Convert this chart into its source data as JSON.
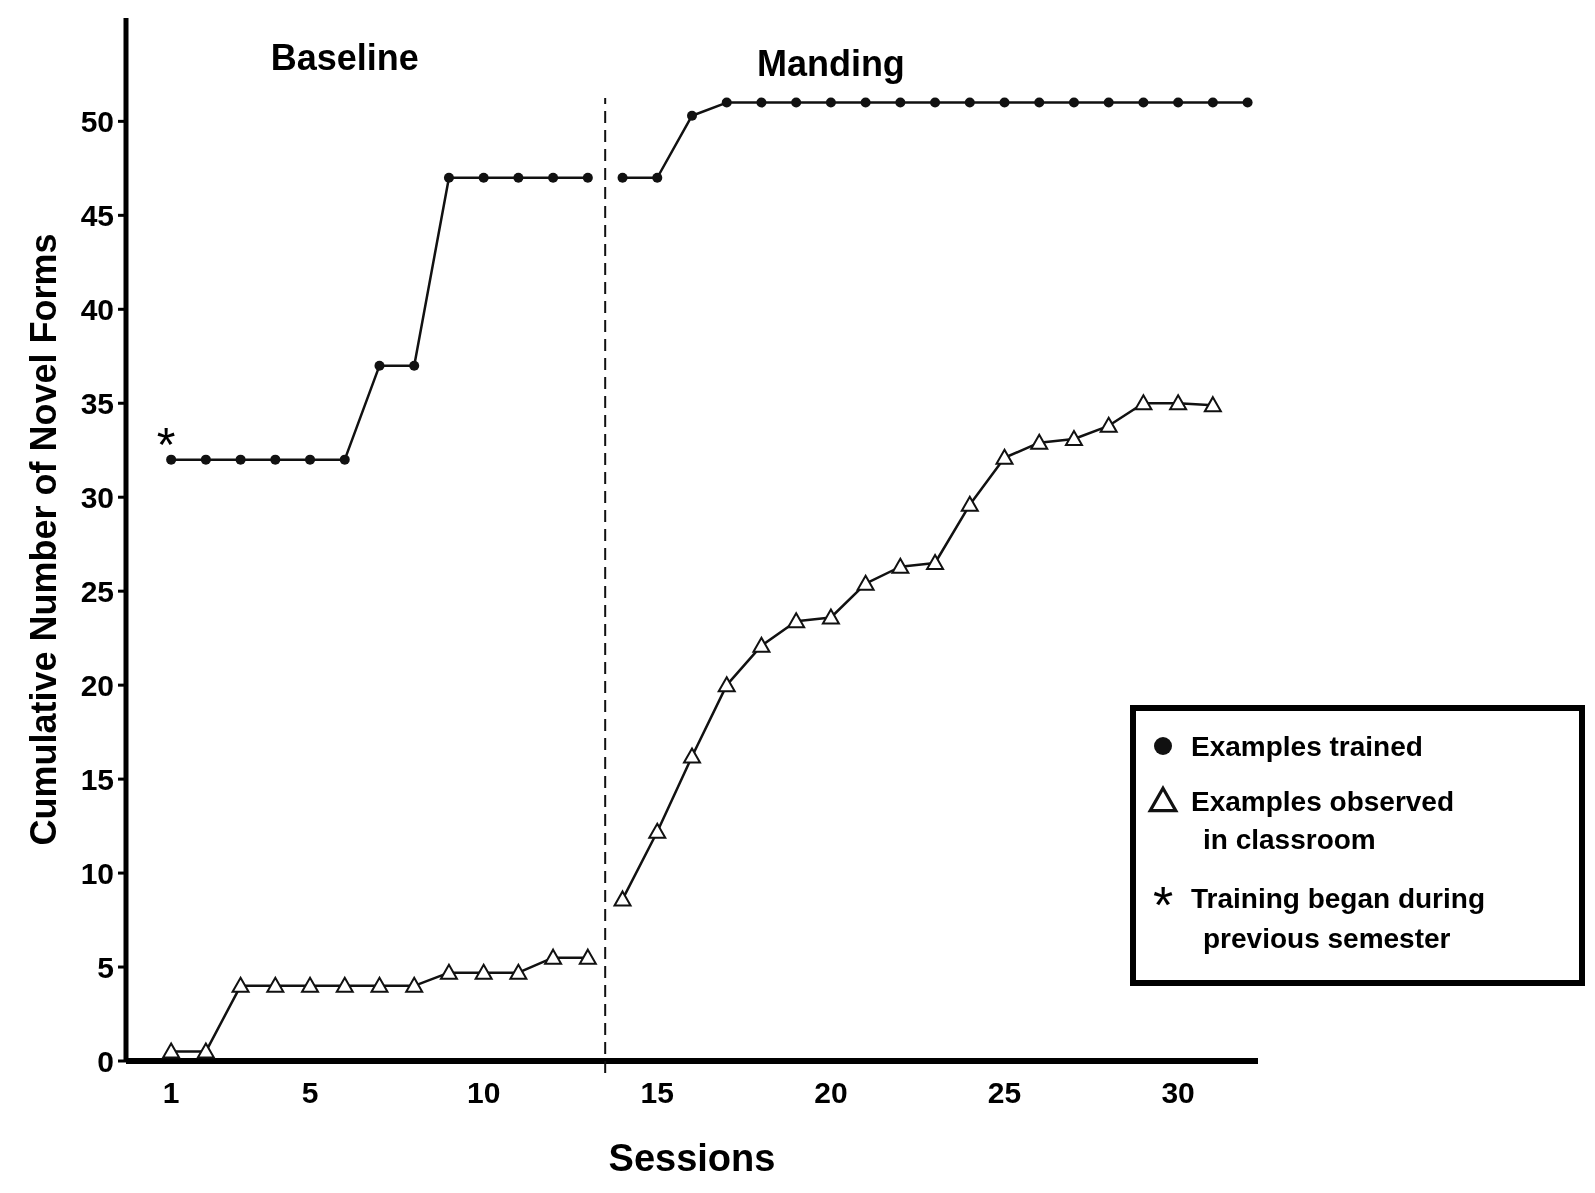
{
  "chart_data": {
    "type": "line",
    "xlabel": "Sessions",
    "ylabel": "Cumulative Number of Novel Forms",
    "xlim": [
      -0.3,
      32.3
    ],
    "ylim": [
      0,
      55.5
    ],
    "xticks": [
      1,
      5,
      10,
      15,
      20,
      25,
      30
    ],
    "yticks": [
      0,
      5,
      10,
      15,
      20,
      25,
      30,
      35,
      40,
      45,
      50
    ],
    "grid": false,
    "legend": "bottom right",
    "line_style": "solid",
    "series": [
      {
        "name": "Examples trained",
        "color": "#111111",
        "marker": "circle",
        "x": [
          1,
          2,
          3,
          4,
          5,
          6,
          7,
          8,
          9,
          10,
          11,
          12,
          13,
          13.5,
          14,
          15,
          16,
          17,
          18,
          19,
          20,
          21,
          22,
          23,
          24,
          25,
          26,
          27,
          28,
          29,
          30,
          31,
          32
        ],
        "values": [
          32,
          32,
          32,
          32,
          32,
          32,
          37,
          37,
          47,
          47,
          47,
          47,
          47,
          null,
          47,
          47,
          50.3,
          51,
          51,
          51,
          51,
          51,
          51,
          51,
          51,
          51,
          51,
          51,
          51,
          51,
          51,
          51,
          51
        ]
      },
      {
        "name": "Examples observed in classroom",
        "color": "#111111",
        "marker": "triangle",
        "x": [
          1,
          2,
          3,
          4,
          5,
          6,
          7,
          8,
          9,
          10,
          11,
          12,
          13,
          13.5,
          14,
          15,
          16,
          17,
          18,
          19,
          20,
          21,
          22,
          23,
          24,
          25,
          26,
          27,
          28,
          29,
          30,
          31
        ],
        "values": [
          0.5,
          0.5,
          4,
          4,
          4,
          4,
          4,
          4,
          4.7,
          4.7,
          4.7,
          5.5,
          5.5,
          null,
          8.6,
          12.2,
          16.2,
          20,
          22.1,
          23.4,
          23.6,
          25.4,
          26.3,
          26.5,
          29.6,
          32.1,
          32.9,
          33.1,
          33.8,
          35,
          35,
          34.9
        ]
      }
    ],
    "ref_lines": [
      {
        "axis": "x",
        "value": 13.5,
        "line_style": "dashed",
        "color": "#111111"
      }
    ],
    "annotations": [
      "Baseline",
      "Manding",
      "*",
      "Training began during previous semester"
    ]
  }
}
